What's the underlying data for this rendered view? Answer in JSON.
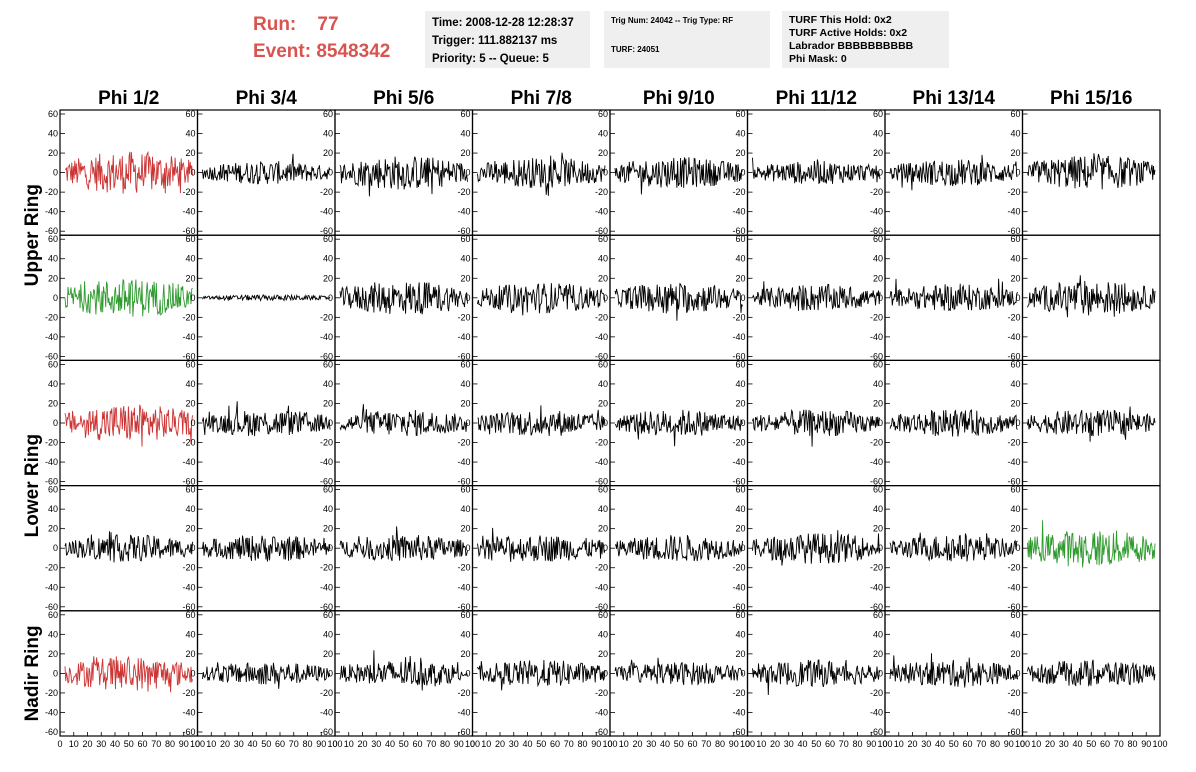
{
  "header": {
    "run_label": "Run:",
    "run_value": "77",
    "event_label": "Event:",
    "event_value": "8548342"
  },
  "time_box": {
    "time": "Time: 2008-12-28 12:28:37",
    "trigger": "Trigger: 111.882137 ms",
    "priority": "Priority: 5 -- Queue: 5"
  },
  "trig_box": {
    "trig": "Trig Num: 24042 -- Trig Type: RF",
    "turf": "TURF: 24051"
  },
  "turf_box": {
    "hold": "TURF This Hold: 0x2",
    "active": "TURF Active Holds: 0x2",
    "labrador": "Labrador BBBBBBBBBB",
    "phimask": "Phi Mask: 0"
  },
  "columns": [
    "Phi 1/2",
    "Phi 3/4",
    "Phi 5/6",
    "Phi 7/8",
    "Phi 9/10",
    "Phi 11/12",
    "Phi 13/14",
    "Phi 15/16"
  ],
  "row_groups": [
    "Upper Ring",
    "Lower Ring",
    "Nadir Ring"
  ],
  "colors": {
    "red": "#cc3333",
    "green": "#2e9a2e",
    "black": "#000000",
    "header_red": "#d9534f",
    "box_bg": "#efefef"
  },
  "y_ticks": [
    "60",
    "40",
    "20",
    "0",
    "-20",
    "-40",
    "-60"
  ],
  "x_ticks": [
    "0",
    "10",
    "20",
    "30",
    "40",
    "50",
    "60",
    "70",
    "80",
    "90",
    "100"
  ],
  "waveform_colors": [
    [
      "red",
      "black",
      "black",
      "black",
      "black",
      "black",
      "black",
      "black"
    ],
    [
      "green",
      "black",
      "black",
      "black",
      "black",
      "black",
      "black",
      "black"
    ],
    [
      "red",
      "black",
      "black",
      "black",
      "black",
      "black",
      "black",
      "black"
    ],
    [
      "black",
      "black",
      "black",
      "black",
      "black",
      "black",
      "black",
      "green"
    ],
    [
      "red",
      "black",
      "black",
      "black",
      "black",
      "black",
      "black",
      "black"
    ]
  ],
  "waveform_amplitudes": [
    [
      22,
      12,
      18,
      16,
      16,
      12,
      14,
      18
    ],
    [
      20,
      3,
      18,
      16,
      16,
      14,
      14,
      18
    ],
    [
      20,
      14,
      14,
      14,
      14,
      14,
      14,
      14
    ],
    [
      14,
      14,
      14,
      14,
      14,
      16,
      14,
      20
    ],
    [
      18,
      12,
      14,
      14,
      12,
      14,
      14,
      14
    ]
  ]
}
